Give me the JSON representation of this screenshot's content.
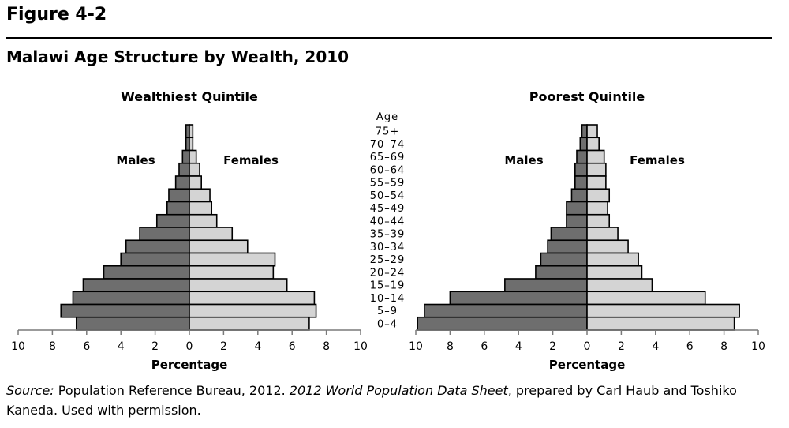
{
  "figure_label": "Figure 4-2",
  "figure_title": "Malawi Age Structure by Wealth, 2010",
  "source": {
    "label": "Source:",
    "part1": " Population Reference Bureau, 2012. ",
    "italic": "2012 World Population Data Sheet",
    "part2": ", prepared by Carl Haub and Toshiko Kaneda. Used with permission."
  },
  "colors": {
    "male": "#6e6e6e",
    "female": "#d4d4d4",
    "stroke": "#000000"
  },
  "chart_data": [
    {
      "type": "bar",
      "subtype": "population-pyramid",
      "title": "Wealthiest Quintile",
      "xlabel": "Percentage",
      "age_axis_title": "Age",
      "male_label": "Males",
      "female_label": "Females",
      "xlim": [
        0,
        10
      ],
      "tick_labels": [
        "10",
        "8",
        "6",
        "4",
        "2",
        "0",
        "2",
        "4",
        "6",
        "8",
        "10"
      ],
      "categories": [
        "75+",
        "70–74",
        "65–69",
        "60–64",
        "55–59",
        "50–54",
        "45–49",
        "40–44",
        "35–39",
        "30–34",
        "25–29",
        "20–24",
        "15–19",
        "10–14",
        "5–9",
        "0–4"
      ],
      "series": [
        {
          "name": "Males",
          "values": [
            0.2,
            0.2,
            0.4,
            0.6,
            0.8,
            1.2,
            1.3,
            1.9,
            2.9,
            3.7,
            4.0,
            5.0,
            6.2,
            6.8,
            7.5,
            6.6
          ]
        },
        {
          "name": "Females",
          "values": [
            0.2,
            0.2,
            0.4,
            0.6,
            0.7,
            1.2,
            1.3,
            1.6,
            2.5,
            3.4,
            5.0,
            4.9,
            5.7,
            7.3,
            7.4,
            7.0
          ]
        }
      ]
    },
    {
      "type": "bar",
      "subtype": "population-pyramid",
      "title": "Poorest Quintile",
      "xlabel": "Percentage",
      "age_axis_title": "Age",
      "male_label": "Males",
      "female_label": "Females",
      "xlim": [
        0,
        10
      ],
      "tick_labels": [
        "10",
        "8",
        "6",
        "4",
        "2",
        "0",
        "2",
        "4",
        "6",
        "8",
        "10"
      ],
      "categories": [
        "75+",
        "70–74",
        "65–69",
        "60–64",
        "55–59",
        "50–54",
        "45–49",
        "40–44",
        "35–39",
        "30–34",
        "25–29",
        "20–24",
        "15–19",
        "10–14",
        "5–9",
        "0–4"
      ],
      "series": [
        {
          "name": "Males",
          "values": [
            0.3,
            0.4,
            0.6,
            0.7,
            0.7,
            0.9,
            1.2,
            1.2,
            2.1,
            2.3,
            2.7,
            3.0,
            4.8,
            8.0,
            9.5,
            9.9
          ]
        },
        {
          "name": "Females",
          "values": [
            0.6,
            0.7,
            1.0,
            1.1,
            1.1,
            1.3,
            1.2,
            1.3,
            1.8,
            2.4,
            3.0,
            3.2,
            3.8,
            6.9,
            8.9,
            8.6
          ]
        }
      ]
    }
  ]
}
